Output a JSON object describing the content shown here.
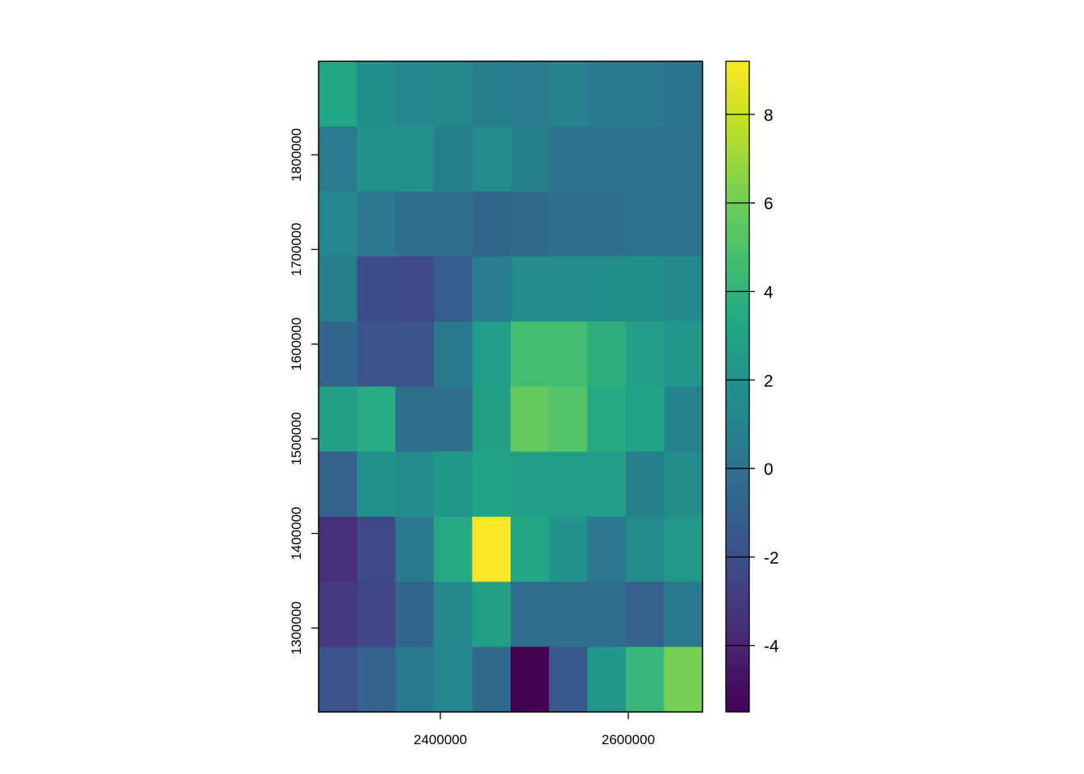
{
  "chart_data": {
    "type": "heatmap",
    "colormap": "viridis",
    "xlim": [
      2270400,
      2679000
    ],
    "ylim": [
      1211400,
      1898800
    ],
    "xticks": [
      2400000,
      2600000
    ],
    "yticks": [
      1300000,
      1400000,
      1500000,
      1600000,
      1700000,
      1800000
    ],
    "clim": [
      -5.5,
      9.2
    ],
    "cticks": [
      -4,
      -2,
      0,
      2,
      4,
      6,
      8
    ],
    "values": [
      [
        3.2,
        1.8,
        1.2,
        1.3,
        0.8,
        0.6,
        1.0,
        0.5,
        0.5,
        0.2
      ],
      [
        0.6,
        2.0,
        2.0,
        0.9,
        1.5,
        0.9,
        0.0,
        0.0,
        0.0,
        0.0
      ],
      [
        1.2,
        0.3,
        -0.2,
        -0.2,
        -0.6,
        -0.4,
        -0.1,
        -0.1,
        0.0,
        0.0
      ],
      [
        0.8,
        -2.0,
        -2.2,
        -1.2,
        0.6,
        1.5,
        1.5,
        1.8,
        1.8,
        1.4
      ],
      [
        -0.6,
        -1.8,
        -1.8,
        0.5,
        2.6,
        4.7,
        4.7,
        3.8,
        2.6,
        2.2
      ],
      [
        2.8,
        3.5,
        -0.2,
        -0.2,
        2.8,
        5.6,
        5.2,
        3.4,
        3.0,
        1.0
      ],
      [
        -1.0,
        1.9,
        1.5,
        2.2,
        3.0,
        2.6,
        2.6,
        2.6,
        0.8,
        1.6
      ],
      [
        -3.5,
        -2.2,
        0.5,
        3.4,
        9.2,
        3.2,
        2.0,
        0.3,
        1.5,
        2.3
      ],
      [
        -3.0,
        -2.4,
        -0.6,
        1.3,
        2.7,
        -0.3,
        -0.3,
        -0.3,
        -0.9,
        0.5
      ],
      [
        -1.8,
        -1.0,
        0.4,
        1.2,
        -0.4,
        -5.5,
        -1.4,
        2.2,
        4.2,
        6.2
      ]
    ]
  }
}
